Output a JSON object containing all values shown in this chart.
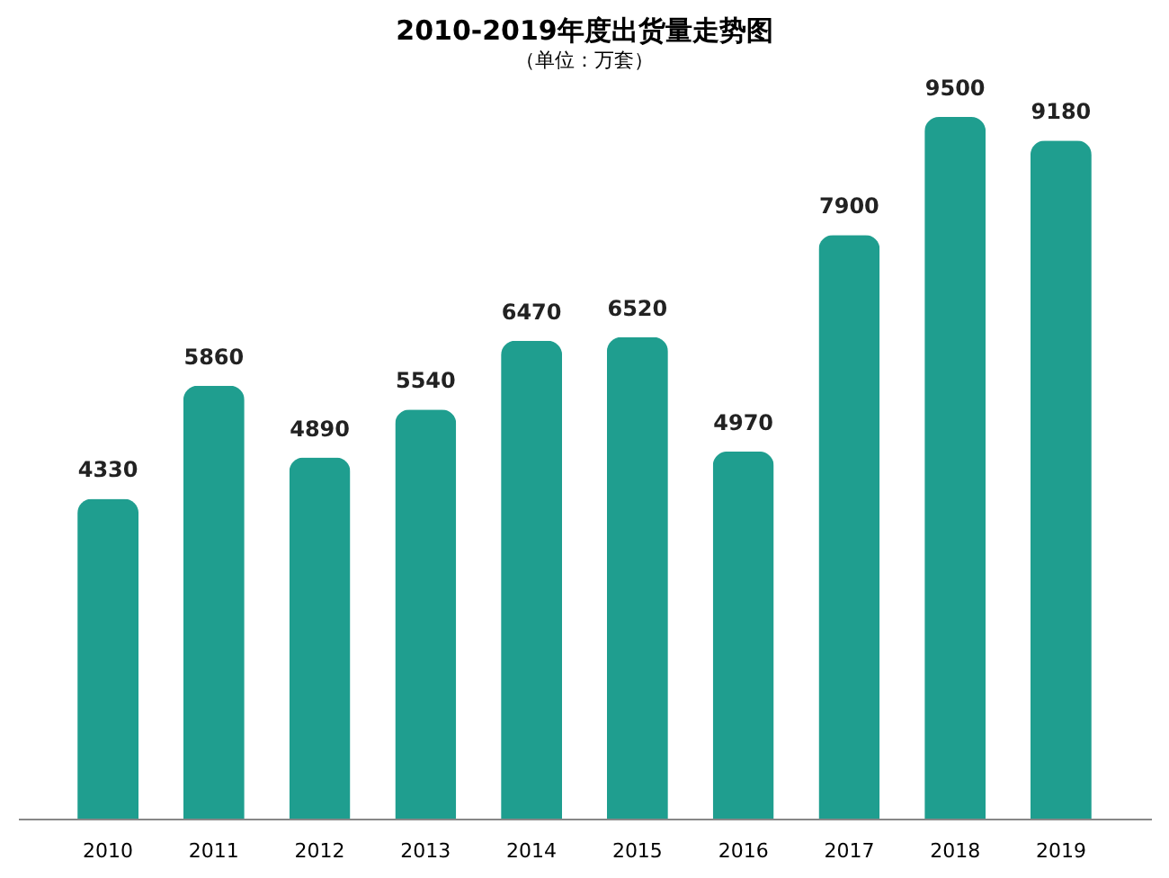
{
  "chart_data": {
    "type": "bar",
    "title": "2010-2019年度出货量走势图",
    "subtitle": "（单位：万套）",
    "categories": [
      "2010",
      "2011",
      "2012",
      "2013",
      "2014",
      "2015",
      "2016",
      "2017",
      "2018",
      "2019"
    ],
    "values": [
      4330,
      5860,
      4890,
      5540,
      6470,
      6520,
      4970,
      7900,
      9500,
      9180
    ],
    "color": "#1f9e8f",
    "data_labels": true
  }
}
